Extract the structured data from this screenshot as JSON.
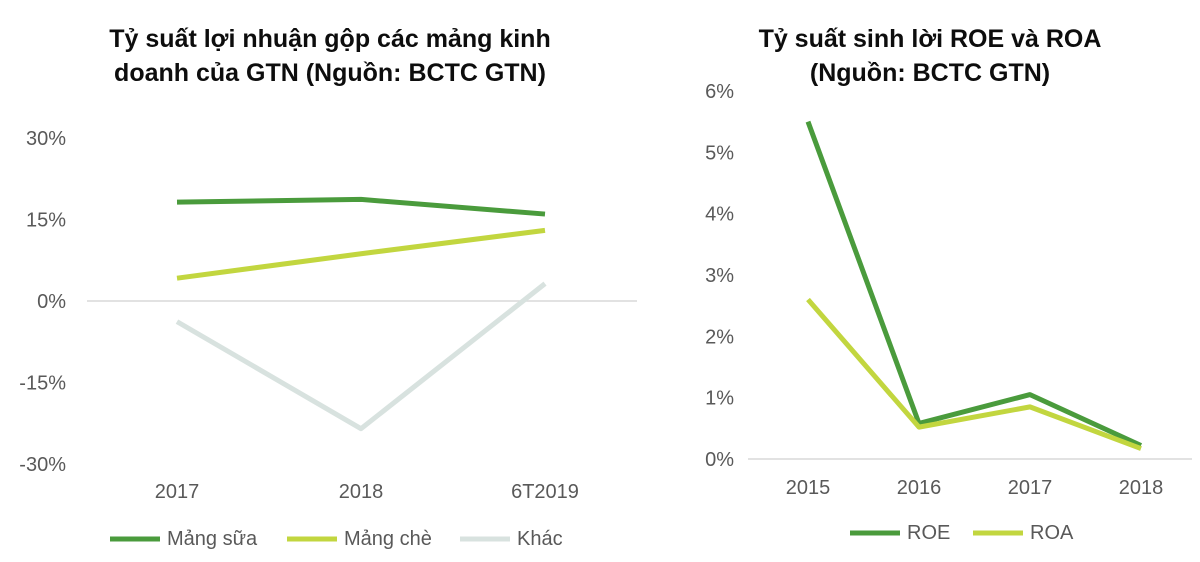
{
  "colors": {
    "dark_green": "#4a9b3c",
    "light_green": "#c2d63f",
    "gray": "#d8e2df",
    "zero_line": "#d9d9d9"
  },
  "chart_data": [
    {
      "type": "line",
      "title_lines": [
        "Tỷ suất lợi nhuận gộp các mảng kinh",
        "doanh của GTN (Nguồn: BCTC GTN)"
      ],
      "categories": [
        "2017",
        "2018",
        "6T2019"
      ],
      "ylim": [
        -30,
        30
      ],
      "yticks": [
        30,
        15,
        0,
        -15,
        -30
      ],
      "ytick_labels": [
        "30%",
        "15%",
        "0%",
        "-15%",
        "-30%"
      ],
      "grid": false,
      "legend_position": "bottom",
      "series": [
        {
          "name": "Mảng sữa",
          "values": [
            18.2,
            18.7,
            16.0
          ],
          "color": "#4a9b3c"
        },
        {
          "name": "Mảng chè",
          "values": [
            4.2,
            8.7,
            13.0
          ],
          "color": "#c2d63f"
        },
        {
          "name": "Khác",
          "values": [
            -3.8,
            -23.5,
            3.2
          ],
          "color": "#d8e2df"
        }
      ]
    },
    {
      "type": "line",
      "title_lines": [
        "Tỷ suất sinh lời ROE và ROA",
        "(Nguồn: BCTC GTN)"
      ],
      "categories": [
        "2015",
        "2016",
        "2017",
        "2018"
      ],
      "ylim": [
        0,
        6
      ],
      "yticks": [
        6,
        5,
        4,
        3,
        2,
        1,
        0
      ],
      "ytick_labels": [
        "6%",
        "5%",
        "4%",
        "3%",
        "2%",
        "1%",
        "0%"
      ],
      "grid": false,
      "legend_position": "bottom",
      "series": [
        {
          "name": "ROE",
          "values": [
            5.5,
            0.58,
            1.05,
            0.22
          ],
          "color": "#4a9b3c"
        },
        {
          "name": "ROA",
          "values": [
            2.6,
            0.52,
            0.85,
            0.17
          ],
          "color": "#c2d63f"
        }
      ]
    }
  ]
}
